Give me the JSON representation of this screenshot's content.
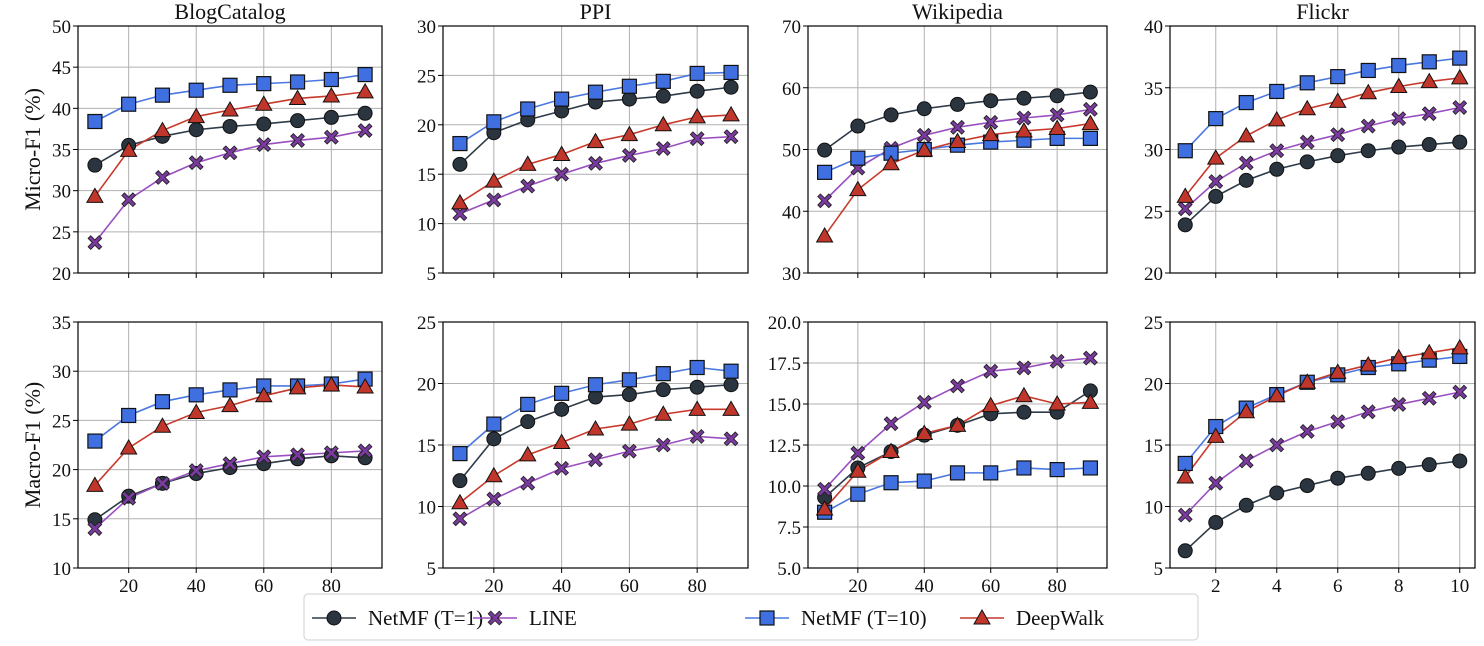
{
  "legend": {
    "placement": "bottom-center",
    "entries": [
      {
        "name": "NetMF (T=1)",
        "marker": "circle",
        "line_color": "#2e3b48",
        "marker_color": "#2a3540"
      },
      {
        "name": "LINE",
        "marker": "x",
        "line_color": "#9a4fc0",
        "marker_color": "#7b3aa0"
      },
      {
        "name": "NetMF (T=10)",
        "marker": "square",
        "line_color": "#4a78e0",
        "marker_color": "#3f6fe0"
      },
      {
        "name": "DeepWalk",
        "marker": "triangle",
        "line_color": "#c9392b",
        "marker_color": "#c0362a"
      }
    ]
  },
  "chart_data": [
    {
      "type": "line",
      "title": "BlogCatalog",
      "row": 0,
      "col": 0,
      "xlabel": "",
      "ylabel": "Micro-F1 (%)",
      "x": [
        10,
        20,
        30,
        40,
        50,
        60,
        70,
        80,
        90
      ],
      "xlim": [
        5,
        95
      ],
      "xticks": [
        20,
        40,
        60,
        80
      ],
      "show_xtick_labels": false,
      "ylim": [
        20,
        50
      ],
      "yticks": [
        20,
        25,
        30,
        35,
        40,
        45,
        50
      ],
      "ytick_labels": [
        "20",
        "25",
        "30",
        "35",
        "40",
        "45",
        "50"
      ],
      "grid": true,
      "series": [
        {
          "name": "NetMF (T=1)",
          "values": [
            33.1,
            35.5,
            36.6,
            37.4,
            37.8,
            38.1,
            38.5,
            38.9,
            39.4
          ]
        },
        {
          "name": "LINE",
          "values": [
            23.7,
            28.9,
            31.6,
            33.4,
            34.6,
            35.6,
            36.1,
            36.5,
            37.3
          ]
        },
        {
          "name": "NetMF (T=10)",
          "values": [
            38.4,
            40.5,
            41.6,
            42.2,
            42.8,
            43.0,
            43.2,
            43.5,
            44.1
          ]
        },
        {
          "name": "DeepWalk",
          "values": [
            29.3,
            34.9,
            37.3,
            39.0,
            39.8,
            40.5,
            41.2,
            41.5,
            42.0
          ]
        }
      ]
    },
    {
      "type": "line",
      "title": "PPI",
      "row": 0,
      "col": 1,
      "xlabel": "",
      "ylabel": "",
      "x": [
        10,
        20,
        30,
        40,
        50,
        60,
        70,
        80,
        90
      ],
      "xlim": [
        5,
        95
      ],
      "xticks": [
        20,
        40,
        60,
        80
      ],
      "show_xtick_labels": false,
      "ylim": [
        5,
        30
      ],
      "yticks": [
        5,
        10,
        15,
        20,
        25,
        30
      ],
      "ytick_labels": [
        "5",
        "10",
        "15",
        "20",
        "25",
        "30"
      ],
      "grid": true,
      "series": [
        {
          "name": "NetMF (T=1)",
          "values": [
            16.0,
            19.2,
            20.5,
            21.4,
            22.3,
            22.6,
            22.9,
            23.4,
            23.8
          ]
        },
        {
          "name": "LINE",
          "values": [
            11.0,
            12.4,
            13.8,
            15.0,
            16.1,
            16.9,
            17.6,
            18.6,
            18.8
          ]
        },
        {
          "name": "NetMF (T=10)",
          "values": [
            18.1,
            20.3,
            21.6,
            22.6,
            23.3,
            23.9,
            24.4,
            25.2,
            25.3
          ]
        },
        {
          "name": "DeepWalk",
          "values": [
            12.1,
            14.3,
            16.0,
            17.0,
            18.3,
            19.0,
            20.0,
            20.8,
            21.0
          ]
        }
      ]
    },
    {
      "type": "line",
      "title": "Wikipedia",
      "row": 0,
      "col": 2,
      "xlabel": "",
      "ylabel": "",
      "x": [
        10,
        20,
        30,
        40,
        50,
        60,
        70,
        80,
        90
      ],
      "xlim": [
        5,
        95
      ],
      "xticks": [
        20,
        40,
        60,
        80
      ],
      "show_xtick_labels": false,
      "ylim": [
        30,
        70
      ],
      "yticks": [
        30,
        40,
        50,
        60,
        70
      ],
      "ytick_labels": [
        "30",
        "40",
        "50",
        "60",
        "70"
      ],
      "grid": true,
      "series": [
        {
          "name": "NetMF (T=1)",
          "values": [
            49.9,
            53.8,
            55.6,
            56.6,
            57.3,
            57.9,
            58.3,
            58.7,
            59.3
          ]
        },
        {
          "name": "LINE",
          "values": [
            41.7,
            47.0,
            50.2,
            52.3,
            53.6,
            54.4,
            55.1,
            55.6,
            56.5
          ]
        },
        {
          "name": "NetMF (T=10)",
          "values": [
            46.3,
            48.6,
            49.4,
            50.0,
            50.7,
            51.2,
            51.5,
            51.8,
            51.8
          ]
        },
        {
          "name": "DeepWalk",
          "values": [
            36.0,
            43.5,
            47.7,
            49.9,
            51.3,
            52.4,
            53.0,
            53.4,
            54.2
          ]
        }
      ]
    },
    {
      "type": "line",
      "title": "Flickr",
      "row": 0,
      "col": 3,
      "xlabel": "",
      "ylabel": "",
      "x": [
        1,
        2,
        3,
        4,
        5,
        6,
        7,
        8,
        9,
        10
      ],
      "xlim": [
        0.5,
        10.5
      ],
      "xticks": [
        2,
        4,
        6,
        8,
        10
      ],
      "show_xtick_labels": false,
      "ylim": [
        20,
        40
      ],
      "yticks": [
        20,
        25,
        30,
        35,
        40
      ],
      "ytick_labels": [
        "20",
        "25",
        "30",
        "35",
        "40"
      ],
      "grid": true,
      "series": [
        {
          "name": "NetMF (T=1)",
          "values": [
            23.9,
            26.2,
            27.5,
            28.4,
            29.0,
            29.5,
            29.9,
            30.2,
            30.4,
            30.6
          ]
        },
        {
          "name": "LINE",
          "values": [
            25.2,
            27.4,
            28.9,
            29.9,
            30.6,
            31.2,
            31.9,
            32.5,
            32.9,
            33.4
          ]
        },
        {
          "name": "NetMF (T=10)",
          "values": [
            29.9,
            32.5,
            33.8,
            34.7,
            35.4,
            35.9,
            36.4,
            36.8,
            37.1,
            37.4
          ]
        },
        {
          "name": "DeepWalk",
          "values": [
            26.2,
            29.3,
            31.1,
            32.4,
            33.3,
            33.9,
            34.6,
            35.1,
            35.5,
            35.8
          ]
        }
      ]
    },
    {
      "type": "line",
      "title": "",
      "row": 1,
      "col": 0,
      "xlabel": "",
      "ylabel": "Macro-F1 (%)",
      "x": [
        10,
        20,
        30,
        40,
        50,
        60,
        70,
        80,
        90
      ],
      "xlim": [
        5,
        95
      ],
      "xticks": [
        20,
        40,
        60,
        80
      ],
      "show_xtick_labels": true,
      "ylim": [
        10,
        35
      ],
      "yticks": [
        10,
        15,
        20,
        25,
        30,
        35
      ],
      "ytick_labels": [
        "10",
        "15",
        "20",
        "25",
        "30",
        "35"
      ],
      "grid": true,
      "series": [
        {
          "name": "NetMF (T=1)",
          "values": [
            14.9,
            17.3,
            18.6,
            19.6,
            20.2,
            20.6,
            21.1,
            21.4,
            21.2
          ]
        },
        {
          "name": "LINE",
          "values": [
            14.0,
            17.1,
            18.6,
            19.9,
            20.6,
            21.3,
            21.5,
            21.7,
            21.9
          ]
        },
        {
          "name": "NetMF (T=10)",
          "values": [
            22.9,
            25.5,
            26.9,
            27.6,
            28.1,
            28.5,
            28.5,
            28.7,
            29.2
          ]
        },
        {
          "name": "DeepWalk",
          "values": [
            18.4,
            22.2,
            24.4,
            25.8,
            26.5,
            27.5,
            28.3,
            28.6,
            28.4
          ]
        }
      ]
    },
    {
      "type": "line",
      "title": "",
      "row": 1,
      "col": 1,
      "xlabel": "",
      "ylabel": "",
      "x": [
        10,
        20,
        30,
        40,
        50,
        60,
        70,
        80,
        90
      ],
      "xlim": [
        5,
        95
      ],
      "xticks": [
        20,
        40,
        60,
        80
      ],
      "show_xtick_labels": true,
      "ylim": [
        5,
        25
      ],
      "yticks": [
        5,
        10,
        15,
        20,
        25
      ],
      "ytick_labels": [
        "5",
        "10",
        "15",
        "20",
        "25"
      ],
      "grid": true,
      "series": [
        {
          "name": "NetMF (T=1)",
          "values": [
            12.1,
            15.5,
            16.9,
            17.9,
            18.9,
            19.1,
            19.5,
            19.7,
            19.9
          ]
        },
        {
          "name": "LINE",
          "values": [
            9.0,
            10.6,
            11.9,
            13.1,
            13.8,
            14.5,
            15.0,
            15.7,
            15.5
          ]
        },
        {
          "name": "NetMF (T=10)",
          "values": [
            14.3,
            16.7,
            18.3,
            19.2,
            19.9,
            20.3,
            20.8,
            21.3,
            21.0
          ]
        },
        {
          "name": "DeepWalk",
          "values": [
            10.3,
            12.5,
            14.2,
            15.2,
            16.3,
            16.7,
            17.5,
            17.9,
            17.9
          ]
        }
      ]
    },
    {
      "type": "line",
      "title": "",
      "row": 1,
      "col": 2,
      "xlabel": "",
      "ylabel": "",
      "x": [
        10,
        20,
        30,
        40,
        50,
        60,
        70,
        80,
        90
      ],
      "xlim": [
        5,
        95
      ],
      "xticks": [
        20,
        40,
        60,
        80
      ],
      "show_xtick_labels": true,
      "ylim": [
        5.0,
        20.0
      ],
      "yticks": [
        5.0,
        7.5,
        10.0,
        12.5,
        15.0,
        17.5,
        20.0
      ],
      "ytick_labels": [
        "5.0",
        "7.5",
        "10.0",
        "12.5",
        "15.0",
        "17.5",
        "20.0"
      ],
      "grid": true,
      "series": [
        {
          "name": "NetMF (T=1)",
          "values": [
            9.3,
            11.1,
            12.1,
            13.1,
            13.7,
            14.4,
            14.5,
            14.5,
            15.8
          ]
        },
        {
          "name": "LINE",
          "values": [
            9.8,
            12.0,
            13.8,
            15.1,
            16.1,
            17.0,
            17.2,
            17.6,
            17.8
          ]
        },
        {
          "name": "NetMF (T=10)",
          "values": [
            8.4,
            9.5,
            10.2,
            10.3,
            10.8,
            10.8,
            11.1,
            11.0,
            11.1
          ]
        },
        {
          "name": "DeepWalk",
          "values": [
            8.6,
            10.9,
            12.1,
            13.2,
            13.7,
            14.9,
            15.5,
            15.0,
            15.1
          ]
        }
      ]
    },
    {
      "type": "line",
      "title": "",
      "row": 1,
      "col": 3,
      "xlabel": "",
      "ylabel": "",
      "x": [
        1,
        2,
        3,
        4,
        5,
        6,
        7,
        8,
        9,
        10
      ],
      "xlim": [
        0.5,
        10.5
      ],
      "xticks": [
        2,
        4,
        6,
        8,
        10
      ],
      "show_xtick_labels": true,
      "ylim": [
        5,
        25
      ],
      "yticks": [
        5,
        10,
        15,
        20,
        25
      ],
      "ytick_labels": [
        "5",
        "10",
        "15",
        "20",
        "25"
      ],
      "grid": true,
      "series": [
        {
          "name": "NetMF (T=1)",
          "values": [
            6.4,
            8.7,
            10.1,
            11.1,
            11.7,
            12.3,
            12.7,
            13.1,
            13.4,
            13.7
          ]
        },
        {
          "name": "LINE",
          "values": [
            9.3,
            11.9,
            13.7,
            15.0,
            16.1,
            16.9,
            17.7,
            18.3,
            18.8,
            19.3
          ]
        },
        {
          "name": "NetMF (T=10)",
          "values": [
            13.5,
            16.5,
            18.0,
            19.1,
            20.1,
            20.7,
            21.3,
            21.6,
            21.9,
            22.2
          ]
        },
        {
          "name": "DeepWalk",
          "values": [
            12.4,
            15.7,
            17.7,
            19.0,
            20.1,
            20.9,
            21.5,
            22.1,
            22.5,
            22.9
          ]
        }
      ]
    }
  ]
}
